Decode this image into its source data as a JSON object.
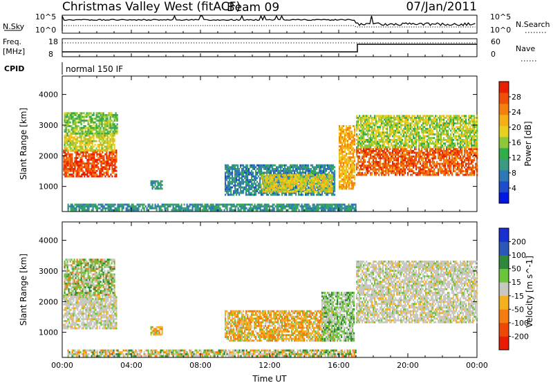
{
  "header": {
    "station": "Christmas Valley West (fitACF)",
    "beam": "Beam 09",
    "date": "07/Jan/2011"
  },
  "top_panels": {
    "nsky_label": "N.Sky",
    "nsearch_label": "N.Search",
    "freq_label": "Freq.",
    "freq_unit": "[MHz]",
    "nave_label": "Nave",
    "cpid_label": "CPID",
    "cpid_value": "normal 150 IF",
    "noise_ticks": [
      "10^5",
      "10^0"
    ],
    "freq_ticks": [
      "18",
      "8"
    ],
    "nave_ticks": [
      "60",
      "0"
    ]
  },
  "chart_data": [
    {
      "type": "heatmap",
      "title": "Power",
      "xlabel": "Time UT",
      "ylabel": "Slant Range [km]",
      "x_ticks": [
        "00:00",
        "04:00",
        "08:00",
        "12:00",
        "16:00",
        "20:00",
        "00:00"
      ],
      "xlim_hours": [
        0,
        24
      ],
      "y_ticks": [
        1000,
        2000,
        3000,
        4000
      ],
      "ylim_km": [
        180,
        4600
      ],
      "colorbar": {
        "label": "Power [dB]",
        "ticks": [
          4,
          8,
          12,
          16,
          20,
          24,
          28
        ],
        "range": [
          0,
          32
        ],
        "colors": [
          "#0018e0",
          "#1f4cc8",
          "#2e78b4",
          "#3d9a82",
          "#2fae4a",
          "#8ec83a",
          "#e8d020",
          "#f5b018",
          "#f58010",
          "#ee5008",
          "#e82000"
        ]
      },
      "grid": false,
      "regions": [
        {
          "t": [
            0.05,
            3.15
          ],
          "r": [
            1300,
            2150
          ],
          "level": 28
        },
        {
          "t": [
            0.1,
            3.0
          ],
          "r": [
            2150,
            2700
          ],
          "level": 18
        },
        {
          "t": [
            0.1,
            3.2
          ],
          "r": [
            2700,
            3400
          ],
          "level": 15
        },
        {
          "t": [
            9.4,
            15.8
          ],
          "r": [
            700,
            1700
          ],
          "level": 9
        },
        {
          "t": [
            11.5,
            15.6
          ],
          "r": [
            800,
            1400
          ],
          "level": 19
        },
        {
          "t": [
            5.1,
            5.8
          ],
          "r": [
            900,
            1150
          ],
          "level": 10
        },
        {
          "t": [
            16.0,
            16.9
          ],
          "r": [
            900,
            3000
          ],
          "level": 22
        },
        {
          "t": [
            17.0,
            24.0
          ],
          "r": [
            1350,
            2250
          ],
          "level": 27
        },
        {
          "t": [
            17.0,
            24.0
          ],
          "r": [
            2250,
            3300
          ],
          "level": 17
        },
        {
          "t": [
            0.3,
            17.0
          ],
          "r": [
            200,
            420
          ],
          "level": 10
        }
      ]
    },
    {
      "type": "heatmap",
      "title": "Velocity",
      "xlabel": "Time UT",
      "ylabel": "Slant Range [km]",
      "x_ticks": [
        "00:00",
        "04:00",
        "08:00",
        "12:00",
        "16:00",
        "20:00",
        "00:00"
      ],
      "xlim_hours": [
        0,
        24
      ],
      "y_ticks": [
        1000,
        2000,
        3000,
        4000
      ],
      "ylim_km": [
        180,
        4600
      ],
      "colorbar": {
        "label": "Velocity [m s^-1]",
        "ticks": [
          200,
          100,
          50,
          15,
          -15,
          -50,
          -100,
          -200
        ],
        "colors": [
          "#1a2fd0",
          "#2a58b8",
          "#2e8a3a",
          "#6cc43a",
          "#c8c8c0",
          "#f5b020",
          "#f57d10",
          "#ee4808",
          "#e81c00"
        ]
      },
      "grid": false,
      "regions": [
        {
          "t": [
            0.05,
            3.15
          ],
          "r": [
            1100,
            2200
          ],
          "class": "ground"
        },
        {
          "t": [
            0.1,
            3.0
          ],
          "r": [
            2200,
            3400
          ],
          "class": "mixed_green"
        },
        {
          "t": [
            9.4,
            15.8
          ],
          "r": [
            700,
            1700
          ],
          "class": "negative_orange"
        },
        {
          "t": [
            5.1,
            5.8
          ],
          "r": [
            900,
            1150
          ],
          "class": "negative_orange"
        },
        {
          "t": [
            15.0,
            16.9
          ],
          "r": [
            700,
            2300
          ],
          "class": "ground_green"
        },
        {
          "t": [
            17.0,
            24.0
          ],
          "r": [
            1300,
            3300
          ],
          "class": "ground"
        },
        {
          "t": [
            0.3,
            17.0
          ],
          "r": [
            200,
            420
          ],
          "class": "low_mixed"
        }
      ]
    }
  ]
}
